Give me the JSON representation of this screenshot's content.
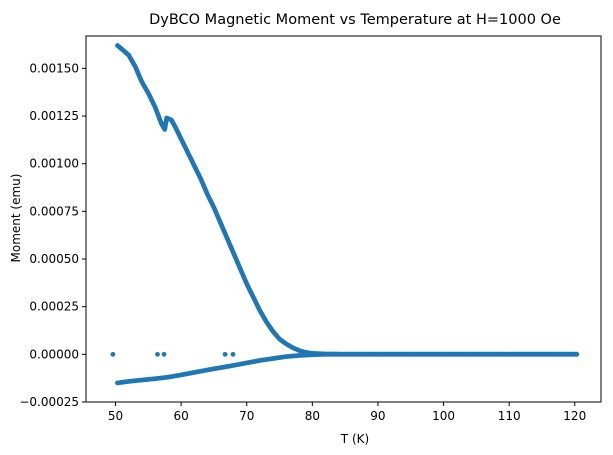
{
  "chart_data": {
    "type": "scatter",
    "title": "DyBCO Magnetic Moment vs Temperature at H=1000 Oe",
    "xlabel": "T (K)",
    "ylabel": "Moment (emu)",
    "xlim": [
      45.5,
      124.0
    ],
    "ylim": [
      -0.00025,
      0.00167
    ],
    "xticks": [
      50,
      60,
      70,
      80,
      90,
      100,
      110,
      120
    ],
    "xtick_labels": [
      "50",
      "60",
      "70",
      "80",
      "90",
      "100",
      "110",
      "120"
    ],
    "yticks": [
      -0.00025,
      0,
      0.00025,
      0.0005,
      0.00075,
      0.001,
      0.00125,
      0.0015
    ],
    "ytick_labels": [
      "−0.00025",
      "0.00000",
      "0.00025",
      "0.00050",
      "0.00075",
      "0.00100",
      "0.00125",
      "0.00150"
    ],
    "grid": false,
    "legend": "none",
    "marker_color": "#1f77b4",
    "series": [
      {
        "name": "",
        "points": [
          [
            50.3,
            0.00162
          ],
          [
            51,
            0.0016
          ],
          [
            52,
            0.00157
          ],
          [
            53,
            0.00151
          ],
          [
            54,
            0.00143
          ],
          [
            55,
            0.00137
          ],
          [
            56,
            0.0013
          ],
          [
            57,
            0.00121
          ],
          [
            57.5,
            0.00118
          ],
          [
            57.8,
            0.00124
          ],
          [
            58.5,
            0.00123
          ],
          [
            59,
            0.0012
          ],
          [
            60,
            0.00113
          ],
          [
            61,
            0.00106
          ],
          [
            62,
            0.00099
          ],
          [
            63,
            0.00092
          ],
          [
            64,
            0.00084
          ],
          [
            65,
            0.00077
          ],
          [
            66,
            0.00069
          ],
          [
            67,
            0.00061
          ],
          [
            68,
            0.00053
          ],
          [
            69,
            0.00045
          ],
          [
            70,
            0.00037
          ],
          [
            71,
            0.0003
          ],
          [
            72,
            0.00023
          ],
          [
            73,
            0.00017
          ],
          [
            74,
            0.00012
          ],
          [
            75,
            8e-05
          ],
          [
            76,
            5.5e-05
          ],
          [
            77,
            3.5e-05
          ],
          [
            78,
            2e-05
          ],
          [
            79,
            1e-05
          ],
          [
            80,
            5e-06
          ],
          [
            82,
            2e-06
          ],
          [
            85,
            1e-06
          ],
          [
            90,
            1e-06
          ],
          [
            95,
            1e-06
          ],
          [
            100,
            1e-06
          ],
          [
            105,
            1e-06
          ],
          [
            110,
            1e-06
          ],
          [
            115,
            1e-06
          ],
          [
            120.3,
            1e-06
          ]
        ]
      },
      {
        "name": "",
        "points": [
          [
            50.3,
            -0.00015
          ],
          [
            52,
            -0.000142
          ],
          [
            54,
            -0.000135
          ],
          [
            56,
            -0.000128
          ],
          [
            58,
            -0.00012
          ],
          [
            60,
            -0.000108
          ],
          [
            62,
            -9.5e-05
          ],
          [
            64,
            -8.2e-05
          ],
          [
            66,
            -7e-05
          ],
          [
            68,
            -5.8e-05
          ],
          [
            70,
            -4.5e-05
          ],
          [
            72,
            -3.2e-05
          ],
          [
            74,
            -2.2e-05
          ],
          [
            76,
            -1.2e-05
          ],
          [
            78,
            -6e-06
          ],
          [
            80,
            -2e-06
          ],
          [
            82,
            0
          ],
          [
            85,
            0
          ],
          [
            90,
            0
          ],
          [
            95,
            0
          ],
          [
            100,
            0
          ],
          [
            105,
            0
          ],
          [
            110,
            0
          ],
          [
            115,
            0
          ],
          [
            120.3,
            0
          ]
        ]
      },
      {
        "name": "",
        "points": [
          [
            49.6,
            0
          ],
          [
            56.4,
            0
          ],
          [
            57.4,
            0
          ],
          [
            66.7,
            0
          ],
          [
            67.9,
            0
          ]
        ]
      }
    ]
  }
}
